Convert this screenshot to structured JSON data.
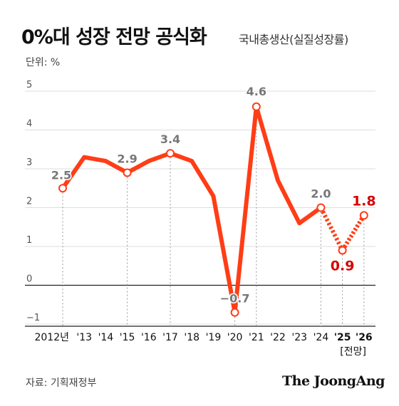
{
  "header": {
    "title": "0%대 성장 전망 공식화",
    "subtitle": "국내총생산(실질성장률)",
    "unit": "단위: %"
  },
  "footer": {
    "source": "자료: 기획재정부",
    "logo": "The JoongAng"
  },
  "colors": {
    "line": "#ff3d16",
    "highlight": "#d70000",
    "label": "#777777",
    "grid": "#dddddd"
  },
  "chart_data": {
    "type": "line",
    "title": "0%대 성장 전망 공식화",
    "subtitle": "국내총생산(실질성장률)",
    "ylabel": "단위: %",
    "ylim": [
      -1,
      5
    ],
    "yticks": [
      5,
      4,
      3,
      2,
      1,
      0,
      -1
    ],
    "ytick_labels": [
      "5",
      "4",
      "3",
      "2",
      "1",
      "0",
      "−1"
    ],
    "x": [
      "2012년",
      "'13",
      "'14",
      "'15",
      "'16",
      "'17",
      "'18",
      "'19",
      "'20",
      "'21",
      "'22",
      "'23",
      "'24",
      "'25",
      "'26"
    ],
    "x_note": "[전망]",
    "values": [
      2.5,
      3.3,
      3.2,
      2.9,
      3.2,
      3.4,
      3.2,
      2.3,
      -0.7,
      4.6,
      2.7,
      1.6,
      2.0,
      0.9,
      1.8
    ],
    "forecast_from_index": 13,
    "labeled_points": [
      {
        "index": 0,
        "label": "2.5"
      },
      {
        "index": 3,
        "label": "2.9"
      },
      {
        "index": 5,
        "label": "3.4"
      },
      {
        "index": 8,
        "label": "−0.7"
      },
      {
        "index": 9,
        "label": "4.6"
      },
      {
        "index": 12,
        "label": "2.0"
      },
      {
        "index": 13,
        "label": "0.9"
      },
      {
        "index": 14,
        "label": "1.8"
      }
    ],
    "grid": true
  }
}
